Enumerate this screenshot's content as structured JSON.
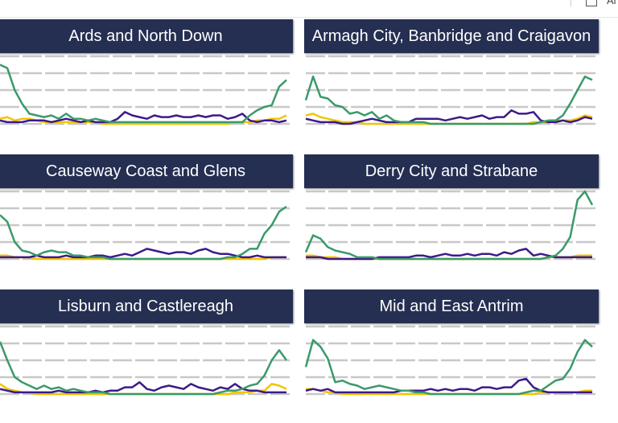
{
  "top_bar": {
    "checkbox_label": "Al"
  },
  "colors": {
    "header": "#252f52",
    "series_green": "#3a9a6a",
    "series_purple": "#3d1a8a",
    "series_yellow": "#f2c500",
    "grid": "#c8c8c8"
  },
  "chart_data": [
    {
      "type": "line",
      "title": "Ards and North Down",
      "ylim": [
        0,
        4
      ],
      "grid": true,
      "series": [
        {
          "color": "green",
          "values": [
            3.5,
            3.3,
            2.0,
            1.2,
            0.6,
            0.5,
            0.4,
            0.5,
            0.3,
            0.6,
            0.3,
            0.3,
            0.2,
            0.3,
            0.2,
            0.1,
            0.1,
            0.1,
            0.1,
            0.1,
            0.1,
            0.1,
            0.1,
            0.1,
            0.1,
            0.1,
            0.1,
            0.1,
            0.1,
            0.1,
            0.1,
            0.1,
            0.1,
            0.1,
            0.5,
            0.8,
            1.0,
            1.1,
            2.2,
            2.6
          ]
        },
        {
          "color": "purple",
          "values": [
            0.2,
            0.1,
            0.1,
            0.1,
            0.2,
            0.2,
            0.2,
            0.1,
            0.2,
            0.3,
            0.2,
            0.1,
            0.2,
            0.1,
            0.1,
            0.1,
            0.3,
            0.7,
            0.5,
            0.4,
            0.3,
            0.5,
            0.4,
            0.4,
            0.5,
            0.4,
            0.4,
            0.5,
            0.4,
            0.5,
            0.5,
            0.3,
            0.4,
            0.6,
            0.2,
            0.1,
            0.2,
            0.2,
            0.1,
            0.2
          ]
        },
        {
          "color": "yellow",
          "values": [
            0.3,
            0.4,
            0.2,
            0.3,
            0.3,
            0.2,
            0.1,
            0.1,
            0.1,
            0.1,
            0.1,
            0.1,
            0.1,
            0.1,
            0.0,
            0.0,
            0.0,
            0.0,
            0.0,
            0.0,
            0.0,
            0.0,
            0.0,
            0.0,
            0.0,
            0.0,
            0.0,
            0.0,
            0.0,
            0.0,
            0.0,
            0.0,
            0.1,
            0.1,
            0.1,
            0.2,
            0.2,
            0.3,
            0.3,
            0.5
          ]
        }
      ]
    },
    {
      "type": "line",
      "title": "Armagh City, Banbridge and Craigavon",
      "ylim": [
        0,
        4
      ],
      "grid": true,
      "series": [
        {
          "color": "green",
          "values": [
            1.4,
            2.8,
            1.6,
            1.5,
            1.1,
            1.0,
            0.6,
            0.7,
            0.5,
            0.7,
            0.3,
            0.5,
            0.2,
            0.1,
            0.1,
            0.1,
            0.1,
            0.0,
            0.0,
            0.0,
            0.0,
            0.0,
            0.0,
            0.0,
            0.0,
            0.0,
            0.0,
            0.0,
            0.0,
            0.0,
            0.0,
            0.0,
            0.1,
            0.2,
            0.2,
            0.5,
            1.2,
            2.0,
            2.8,
            2.6
          ]
        },
        {
          "color": "purple",
          "values": [
            0.3,
            0.2,
            0.1,
            0.1,
            0.1,
            0.0,
            0.0,
            0.1,
            0.2,
            0.3,
            0.2,
            0.1,
            0.1,
            0.1,
            0.1,
            0.3,
            0.3,
            0.3,
            0.3,
            0.2,
            0.3,
            0.4,
            0.3,
            0.4,
            0.5,
            0.3,
            0.4,
            0.4,
            0.8,
            0.6,
            0.6,
            0.7,
            0.2,
            0.1,
            0.1,
            0.2,
            0.1,
            0.2,
            0.4,
            0.3
          ]
        },
        {
          "color": "yellow",
          "values": [
            0.5,
            0.6,
            0.4,
            0.3,
            0.2,
            0.1,
            0.1,
            0.1,
            0.0,
            0.0,
            0.0,
            0.0,
            0.0,
            0.0,
            0.0,
            0.0,
            0.0,
            0.0,
            0.0,
            0.0,
            0.0,
            0.0,
            0.0,
            0.0,
            0.0,
            0.0,
            0.0,
            0.0,
            0.0,
            0.0,
            0.0,
            0.1,
            0.1,
            0.1,
            0.2,
            0.2,
            0.2,
            0.3,
            0.5,
            0.4
          ]
        }
      ]
    },
    {
      "type": "line",
      "title": "Causeway Coast and Glens",
      "ylim": [
        0,
        4
      ],
      "grid": true,
      "series": [
        {
          "color": "green",
          "values": [
            2.6,
            2.2,
            1.0,
            0.5,
            0.4,
            0.2,
            0.4,
            0.5,
            0.4,
            0.4,
            0.2,
            0.2,
            0.1,
            0.1,
            0.1,
            0.0,
            0.0,
            0.0,
            0.0,
            0.0,
            0.0,
            0.0,
            0.0,
            0.0,
            0.0,
            0.0,
            0.0,
            0.0,
            0.0,
            0.0,
            0.0,
            0.1,
            0.1,
            0.3,
            0.6,
            0.6,
            1.5,
            2.0,
            2.8,
            3.1
          ]
        },
        {
          "color": "purple",
          "values": [
            0.1,
            0.1,
            0.1,
            0.1,
            0.1,
            0.2,
            0.1,
            0.1,
            0.1,
            0.2,
            0.1,
            0.1,
            0.1,
            0.2,
            0.2,
            0.1,
            0.2,
            0.3,
            0.2,
            0.4,
            0.6,
            0.5,
            0.4,
            0.3,
            0.4,
            0.4,
            0.3,
            0.5,
            0.6,
            0.4,
            0.3,
            0.3,
            0.2,
            0.1,
            0.1,
            0.2,
            0.1,
            0.1,
            0.1,
            0.1
          ]
        },
        {
          "color": "yellow",
          "values": [
            0.2,
            0.2,
            0.1,
            0.1,
            0.1,
            0.0,
            0.0,
            0.0,
            0.0,
            0.0,
            0.0,
            0.0,
            0.0,
            0.0,
            0.0,
            0.0,
            0.0,
            0.0,
            0.0,
            0.0,
            0.0,
            0.0,
            0.0,
            0.0,
            0.0,
            0.0,
            0.0,
            0.0,
            0.0,
            0.0,
            0.0,
            0.0,
            0.0,
            0.0,
            0.0,
            0.0,
            0.0,
            0.1,
            0.1,
            0.1
          ]
        }
      ]
    },
    {
      "type": "line",
      "title": "Derry City and Strabane",
      "ylim": [
        0,
        4
      ],
      "grid": true,
      "series": [
        {
          "color": "green",
          "values": [
            0.4,
            1.4,
            1.2,
            0.7,
            0.5,
            0.4,
            0.3,
            0.1,
            0.1,
            0.1,
            0.0,
            0.0,
            0.0,
            0.0,
            0.0,
            0.0,
            0.0,
            0.0,
            0.0,
            0.0,
            0.0,
            0.0,
            0.0,
            0.0,
            0.0,
            0.0,
            0.0,
            0.0,
            0.0,
            0.0,
            0.0,
            0.0,
            0.0,
            0.1,
            0.2,
            0.6,
            1.3,
            3.5,
            4.0,
            3.2
          ]
        },
        {
          "color": "purple",
          "values": [
            0.1,
            0.1,
            0.1,
            0.0,
            0.0,
            0.0,
            0.0,
            0.0,
            0.0,
            0.0,
            0.1,
            0.1,
            0.1,
            0.1,
            0.1,
            0.2,
            0.2,
            0.1,
            0.2,
            0.3,
            0.2,
            0.2,
            0.3,
            0.2,
            0.3,
            0.3,
            0.2,
            0.4,
            0.3,
            0.5,
            0.6,
            0.2,
            0.3,
            0.2,
            0.1,
            0.1,
            0.1,
            0.1,
            0.1,
            0.1
          ]
        },
        {
          "color": "yellow",
          "values": [
            0.2,
            0.2,
            0.1,
            0.1,
            0.1,
            0.0,
            0.0,
            0.0,
            0.0,
            0.0,
            0.0,
            0.0,
            0.0,
            0.0,
            0.0,
            0.0,
            0.0,
            0.0,
            0.0,
            0.0,
            0.0,
            0.0,
            0.0,
            0.0,
            0.0,
            0.0,
            0.0,
            0.0,
            0.0,
            0.0,
            0.0,
            0.0,
            0.0,
            0.1,
            0.1,
            0.1,
            0.1,
            0.2,
            0.2,
            0.2
          ]
        }
      ]
    },
    {
      "type": "line",
      "title": "Lisburn and Castlereagh",
      "ylim": [
        0,
        4
      ],
      "grid": true,
      "series": [
        {
          "color": "green",
          "values": [
            3.1,
            2.0,
            1.0,
            0.7,
            0.5,
            0.3,
            0.5,
            0.3,
            0.4,
            0.2,
            0.3,
            0.2,
            0.1,
            0.1,
            0.1,
            0.0,
            0.0,
            0.0,
            0.0,
            0.0,
            0.0,
            0.0,
            0.0,
            0.0,
            0.0,
            0.0,
            0.0,
            0.0,
            0.0,
            0.0,
            0.1,
            0.2,
            0.2,
            0.3,
            0.5,
            0.6,
            1.1,
            2.0,
            2.6,
            2.0
          ]
        },
        {
          "color": "purple",
          "values": [
            0.3,
            0.2,
            0.1,
            0.1,
            0.1,
            0.1,
            0.1,
            0.1,
            0.2,
            0.1,
            0.1,
            0.1,
            0.1,
            0.2,
            0.1,
            0.2,
            0.2,
            0.4,
            0.4,
            0.7,
            0.3,
            0.2,
            0.4,
            0.5,
            0.4,
            0.3,
            0.6,
            0.4,
            0.3,
            0.2,
            0.4,
            0.3,
            0.6,
            0.3,
            0.2,
            0.2,
            0.1,
            0.1,
            0.1,
            0.1
          ]
        },
        {
          "color": "yellow",
          "values": [
            0.6,
            0.3,
            0.2,
            0.1,
            0.1,
            0.0,
            0.0,
            0.0,
            0.0,
            0.0,
            0.0,
            0.0,
            0.0,
            0.0,
            0.0,
            0.0,
            0.0,
            0.0,
            0.0,
            0.0,
            0.0,
            0.0,
            0.0,
            0.0,
            0.0,
            0.0,
            0.0,
            0.0,
            0.0,
            0.0,
            0.0,
            0.0,
            0.1,
            0.1,
            0.1,
            0.2,
            0.2,
            0.6,
            0.5,
            0.3
          ]
        }
      ]
    },
    {
      "type": "line",
      "title": "Mid and East Antrim",
      "ylim": [
        0,
        4
      ],
      "grid": true,
      "series": [
        {
          "color": "green",
          "values": [
            1.6,
            3.2,
            2.8,
            2.1,
            0.7,
            0.8,
            0.6,
            0.5,
            0.3,
            0.4,
            0.5,
            0.4,
            0.3,
            0.2,
            0.2,
            0.1,
            0.1,
            0.0,
            0.0,
            0.0,
            0.0,
            0.0,
            0.0,
            0.0,
            0.0,
            0.0,
            0.0,
            0.0,
            0.0,
            0.0,
            0.1,
            0.2,
            0.2,
            0.5,
            0.8,
            0.9,
            1.5,
            2.5,
            3.2,
            2.8
          ]
        },
        {
          "color": "purple",
          "values": [
            0.2,
            0.3,
            0.2,
            0.3,
            0.1,
            0.1,
            0.1,
            0.1,
            0.1,
            0.1,
            0.1,
            0.1,
            0.1,
            0.2,
            0.2,
            0.2,
            0.2,
            0.3,
            0.2,
            0.3,
            0.2,
            0.3,
            0.3,
            0.2,
            0.4,
            0.4,
            0.3,
            0.4,
            0.4,
            0.8,
            0.9,
            0.4,
            0.2,
            0.1,
            0.1,
            0.1,
            0.1,
            0.1,
            0.1,
            0.1
          ]
        },
        {
          "color": "yellow",
          "values": [
            0.3,
            0.3,
            0.2,
            0.1,
            0.1,
            0.0,
            0.0,
            0.0,
            0.0,
            0.0,
            0.0,
            0.0,
            0.0,
            0.0,
            0.0,
            0.0,
            0.0,
            0.0,
            0.0,
            0.0,
            0.0,
            0.0,
            0.0,
            0.0,
            0.0,
            0.0,
            0.0,
            0.0,
            0.0,
            0.0,
            0.0,
            0.0,
            0.1,
            0.1,
            0.1,
            0.1,
            0.1,
            0.1,
            0.2,
            0.2
          ]
        }
      ]
    }
  ]
}
